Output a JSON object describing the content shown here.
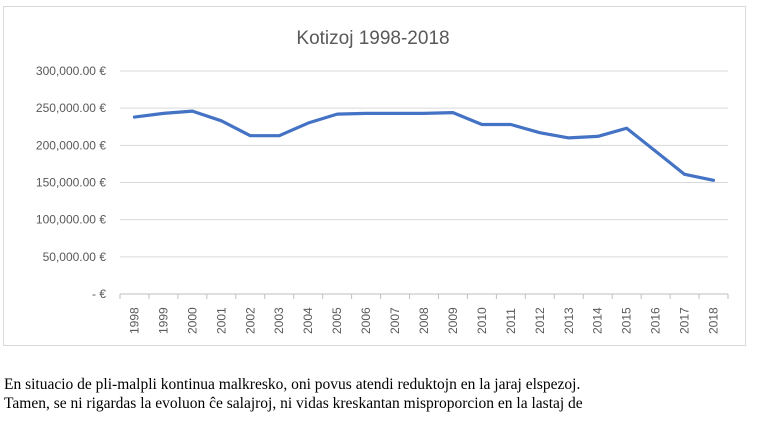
{
  "chart_data": {
    "type": "line",
    "title": "Kotizoj 1998-2018",
    "xlabel": "",
    "ylabel": "",
    "categories": [
      "1998",
      "1999",
      "2000",
      "2001",
      "2002",
      "2003",
      "2004",
      "2005",
      "2006",
      "2007",
      "2008",
      "2009",
      "2010",
      "2011",
      "2012",
      "2013",
      "2014",
      "2015",
      "2016",
      "2017",
      "2018"
    ],
    "series": [
      {
        "values": [
          238000,
          243000,
          246000,
          233000,
          213000,
          213000,
          230000,
          242000,
          243000,
          243000,
          243000,
          244000,
          228000,
          228000,
          217000,
          210000,
          212000,
          223000,
          192000,
          161000,
          153000
        ],
        "color": "#4472C4"
      }
    ],
    "ylim": [
      0,
      300000
    ],
    "yticks": [
      300000,
      250000,
      200000,
      150000,
      100000,
      50000,
      0
    ],
    "ytick_labels": [
      "300,000.00 €",
      "250,000.00 €",
      "200,000.00 €",
      "150,000.00 €",
      "100,000.00 €",
      "50,000.00 €",
      "-   €"
    ],
    "grid": true,
    "legend": "none"
  },
  "text": {
    "line1": "En situacio de pli-malpli kontinua malkresko, oni povus atendi reduktojn en la jaraj elspezoj.",
    "line2": "Tamen, se ni rigardas la evoluon ĉe salajroj, ni vidas kreskantan misproporcion en la lastaj de"
  }
}
